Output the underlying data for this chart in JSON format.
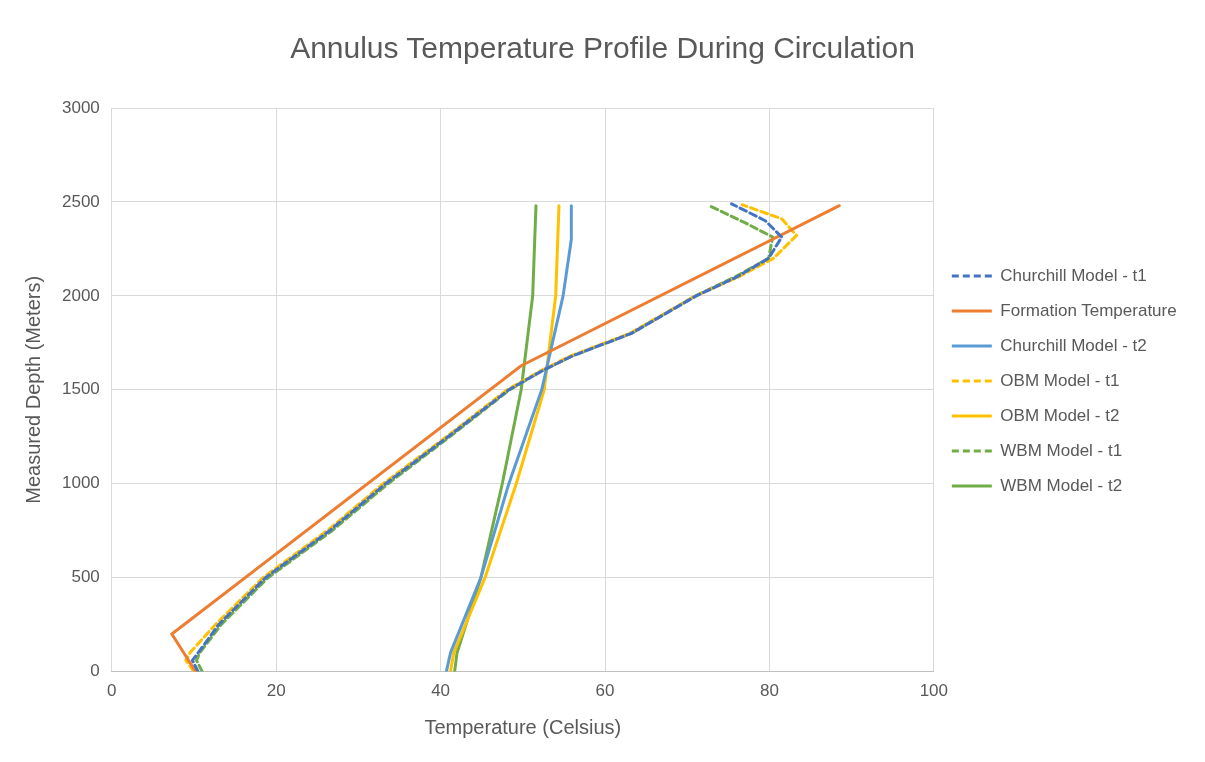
{
  "chart_data": {
    "type": "line",
    "title": "Annulus Temperature Profile During Circulation",
    "xlabel": "Temperature (Celsius)",
    "ylabel": "Measured Depth (Meters)",
    "xlim": [
      0,
      100
    ],
    "xticks": [
      0,
      20,
      40,
      60,
      80,
      100
    ],
    "ylim": [
      0,
      3000
    ],
    "yticks": [
      0,
      500,
      1000,
      1500,
      2000,
      2500,
      3000
    ],
    "grid": true,
    "legend": "right",
    "marker": "none",
    "series": [
      {
        "name": "Churchill Model - t1",
        "color": "#4472c4",
        "line_style": "dashed",
        "x": [
          10.5,
          9.8,
          10.5,
          13,
          18.7,
          26.5,
          33.3,
          40.9,
          48.3,
          52.3,
          56,
          63.2,
          71.1,
          76,
          79.9,
          81.5,
          79.5,
          75.4
        ],
        "values": [
          0,
          60,
          100,
          250,
          500,
          750,
          1000,
          1250,
          1500,
          1600,
          1680,
          1800,
          2000,
          2100,
          2200,
          2313,
          2400,
          2490
        ]
      },
      {
        "name": "Formation Temperature",
        "color": "#ed7d31",
        "line_style": "solid",
        "x": [
          10.2,
          7.3,
          49.8,
          88.5
        ],
        "values": [
          0,
          200,
          1628,
          2480
        ]
      },
      {
        "name": "Churchill Model - t2",
        "color": "#5b9bd5",
        "line_style": "solid",
        "x": [
          40.7,
          41.2,
          44.9,
          48.3,
          52.3,
          54.9,
          55.9,
          55.9
        ],
        "values": [
          0,
          100,
          500,
          1000,
          1500,
          2000,
          2300,
          2480
        ]
      },
      {
        "name": "OBM Model - t1",
        "color": "#ffc000",
        "line_style": "dashed",
        "x": [
          10,
          9,
          9.5,
          12.6,
          18.4,
          26.2,
          33,
          40.7,
          48.1,
          52.1,
          55.8,
          63,
          71,
          76.2,
          80.5,
          83.3,
          81.5,
          76.7
        ],
        "values": [
          0,
          60,
          100,
          250,
          500,
          750,
          1000,
          1250,
          1500,
          1600,
          1680,
          1800,
          2000,
          2100,
          2200,
          2322,
          2410,
          2485
        ]
      },
      {
        "name": "OBM Model - t2",
        "color": "#ffc000",
        "line_style": "solid",
        "x": [
          41.2,
          41.6,
          45.4,
          49.2,
          52.6,
          54,
          54.4
        ],
        "values": [
          0,
          100,
          500,
          1000,
          1500,
          2000,
          2480
        ]
      },
      {
        "name": "WBM Model - t1",
        "color": "#70ad47",
        "line_style": "dashed",
        "x": [
          11,
          10.3,
          10.7,
          13.3,
          19,
          26.8,
          33.6,
          41.1,
          48.4,
          52.3,
          56,
          63.2,
          71,
          75.8,
          79.9,
          80.4,
          77,
          72.7
        ],
        "values": [
          0,
          60,
          100,
          250,
          500,
          750,
          1000,
          1250,
          1500,
          1600,
          1680,
          1800,
          2000,
          2100,
          2200,
          2313,
          2390,
          2480
        ]
      },
      {
        "name": "WBM Model - t2",
        "color": "#70ad47",
        "line_style": "solid",
        "x": [
          41.7,
          42,
          44.9,
          47.5,
          49.8,
          51.2,
          51.6
        ],
        "values": [
          0,
          100,
          500,
          1000,
          1500,
          2000,
          2480
        ]
      }
    ]
  }
}
